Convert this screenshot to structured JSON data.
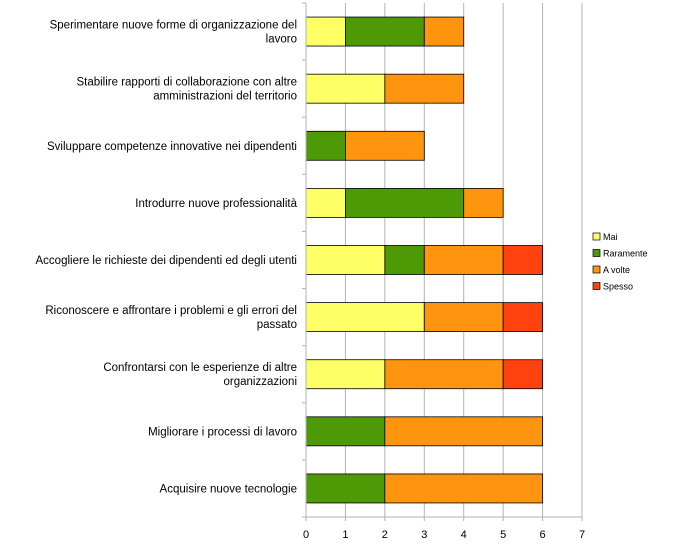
{
  "chart_data": {
    "type": "bar",
    "orientation": "horizontal",
    "stacked": true,
    "categories": [
      "Sperimentare nuove forme di organizzazione del lavoro",
      "Stabilire rapporti di collaborazione con altre amministrazioni del territorio",
      "Sviluppare competenze innovative nei dipendenti",
      "Introdurre nuove professionalità",
      "Accogliere le richieste dei dipendenti ed degli utenti",
      "Riconoscere e affrontare i problemi e gli errori del passato",
      "Confrontarsi con le esperienze di altre organizzazioni",
      "Migliorare i processi di lavoro",
      "Acquisire nuove tecnologie"
    ],
    "category_lines": [
      [
        "Sperimentare nuove forme di organizzazione del",
        "lavoro"
      ],
      [
        "Stabilire rapporti di collaborazione con altre",
        "amministrazioni del territorio"
      ],
      [
        "Sviluppare competenze innovative nei dipendenti"
      ],
      [
        "Introdurre nuove professionalità"
      ],
      [
        "Accogliere le richieste dei dipendenti ed degli utenti"
      ],
      [
        "Riconoscere e affrontare i problemi e gli errori del",
        "passato"
      ],
      [
        "Confrontarsi con le esperienze di altre",
        "organizzazioni"
      ],
      [
        "Migliorare i processi di lavoro"
      ],
      [
        "Acquisire nuove tecnologie"
      ]
    ],
    "series": [
      {
        "name": "Mai",
        "color": "#ffff66",
        "values": [
          1,
          2,
          0,
          1,
          2,
          3,
          2,
          0,
          0
        ]
      },
      {
        "name": "Raramente",
        "color": "#4e9a06",
        "values": [
          2,
          0,
          1,
          3,
          1,
          0,
          0,
          2,
          2
        ]
      },
      {
        "name": "A volte",
        "color": "#ff950e",
        "values": [
          1,
          2,
          2,
          1,
          2,
          2,
          3,
          4,
          4
        ]
      },
      {
        "name": "Spesso",
        "color": "#ff420e",
        "values": [
          0,
          0,
          0,
          0,
          1,
          1,
          1,
          0,
          0
        ]
      }
    ],
    "xlim": [
      0,
      7
    ],
    "ticks": [
      0,
      1,
      2,
      3,
      4,
      5,
      6,
      7
    ],
    "grid": true,
    "legend_position": "right"
  }
}
